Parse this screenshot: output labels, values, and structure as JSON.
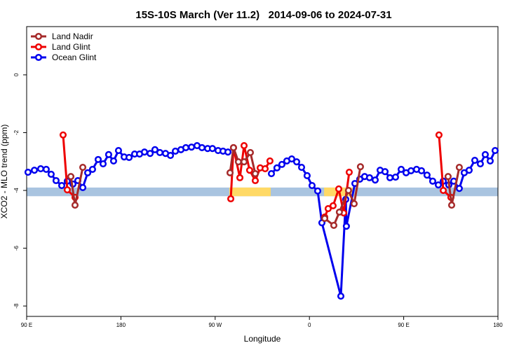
{
  "chart_data": {
    "type": "line",
    "title": "15S-10S March (Ver 11.2)   2014-09-06 to 2024-07-31",
    "x_label": "Longitude",
    "y_label": "XCO2 - MLO trend (ppm)",
    "xlim": [
      90,
      540
    ],
    "ylim": [
      -8.36,
      1.67
    ],
    "xticks": [
      {
        "value": 90,
        "label": "90 E"
      },
      {
        "value": 180,
        "label": "180"
      },
      {
        "value": 270,
        "label": "90 W"
      },
      {
        "value": 360,
        "label": "0"
      },
      {
        "value": 450,
        "label": "90 E"
      },
      {
        "value": 540,
        "label": "180"
      }
    ],
    "yticks": [
      0,
      -2,
      -4,
      -6,
      -8
    ],
    "legend": "topleft",
    "background_band": {
      "y": [
        -4.2,
        -3.9
      ],
      "color": "#a9c4e0",
      "segments": [
        {
          "x": [
            283.5,
            323
          ],
          "color": "#ffd966"
        },
        {
          "x": [
            374,
            402.7
          ],
          "color": "#ffd966"
        }
      ]
    },
    "series": [
      {
        "name": "Land Nadir",
        "color": "#a52a2a",
        "x": [
          132.2,
          136.2,
          143.6,
          null,
          284.2,
          287.5,
          292.2,
          297.6,
          303.6,
          308.3,
          null,
          374.6,
          383.3,
          388.6,
          397.3,
          402.7,
          408.7,
          null,
          492.4,
          495.8,
          503.1
        ],
        "values": [
          -3.52,
          -4.51,
          -3.2,
          null,
          -3.39,
          -2.52,
          -3.01,
          -3.01,
          -2.69,
          -3.42,
          null,
          -4.97,
          -5.21,
          -4.75,
          -4.0,
          -4.46,
          -3.18,
          null,
          -3.52,
          -4.51,
          -3.2
        ]
      },
      {
        "name": "Land Glint",
        "color": "#ee0000",
        "x": [
          124.8,
          128.8,
          136.2,
          null,
          284.9,
          287.5,
          293.6,
          297.6,
          302.9,
          308.3,
          313.0,
          317.7,
          322.3,
          null,
          374.6,
          377.9,
          382.6,
          388.0,
          392.7,
          398.0,
          null,
          483.7,
          487.8,
          495.1
        ],
        "values": [
          -2.08,
          -3.98,
          -4.24,
          null,
          -4.29,
          -2.52,
          -3.56,
          -2.45,
          -3.3,
          -3.66,
          -3.22,
          -3.25,
          -2.98,
          null,
          -4.92,
          -4.63,
          -4.53,
          -3.95,
          -4.78,
          -3.37,
          null,
          -2.08,
          -4.0,
          -4.24
        ]
      },
      {
        "name": "Ocean Glint",
        "color": "#0000ee",
        "x": [
          91.3,
          97.4,
          103.4,
          108.7,
          113.4,
          118.1,
          123.5,
          128.8,
          134.2,
          138.9,
          143.6,
          148.3,
          152.9,
          158.3,
          163.0,
          168.3,
          173.0,
          177.7,
          183.1,
          187.8,
          193.1,
          197.8,
          202.5,
          207.9,
          212.5,
          217.2,
          222.6,
          227.3,
          232.0,
          237.3,
          242.0,
          247.4,
          252.7,
          257.4,
          262.8,
          267.4,
          272.8,
          277.5,
          282.2,
          null,
          323.7,
          329.0,
          333.7,
          338.4,
          343.1,
          347.8,
          352.5,
          357.8,
          362.5,
          367.9,
          371.9,
          390.0,
          394.7,
          395.3,
          403.4,
          408.1,
          412.7,
          417.4,
          422.8,
          427.5,
          432.2,
          436.9,
          442.2,
          447.6,
          452.3,
          457.0,
          462.3,
          467.0,
          472.3,
          477.7,
          483.1,
          487.8,
          493.1,
          497.8,
          503.1,
          507.8,
          512.5,
          517.9,
          523.2,
          527.9,
          532.6,
          537.3
        ],
        "values": [
          -3.37,
          -3.3,
          -3.25,
          -3.27,
          -3.44,
          -3.66,
          -3.83,
          -3.68,
          -3.78,
          -3.66,
          -3.9,
          -3.39,
          -3.27,
          -2.93,
          -3.08,
          -2.76,
          -2.98,
          -2.62,
          -2.84,
          -2.86,
          -2.74,
          -2.74,
          -2.67,
          -2.72,
          -2.59,
          -2.69,
          -2.72,
          -2.79,
          -2.64,
          -2.59,
          -2.52,
          -2.5,
          -2.45,
          -2.52,
          -2.55,
          -2.55,
          -2.62,
          -2.64,
          -2.67,
          null,
          -3.42,
          -3.22,
          -3.1,
          -2.98,
          -2.91,
          -3.01,
          -3.2,
          -3.49,
          -3.83,
          -4.02,
          -5.12,
          -7.66,
          -4.31,
          -5.24,
          -3.76,
          -3.61,
          -3.52,
          -3.56,
          -3.64,
          -3.3,
          -3.35,
          -3.56,
          -3.54,
          -3.27,
          -3.39,
          -3.32,
          -3.27,
          -3.32,
          -3.47,
          -3.68,
          -3.81,
          -3.68,
          -3.81,
          -3.68,
          -3.93,
          -3.39,
          -3.3,
          -2.96,
          -3.08,
          -2.76,
          -2.98,
          -2.62
        ]
      }
    ]
  }
}
